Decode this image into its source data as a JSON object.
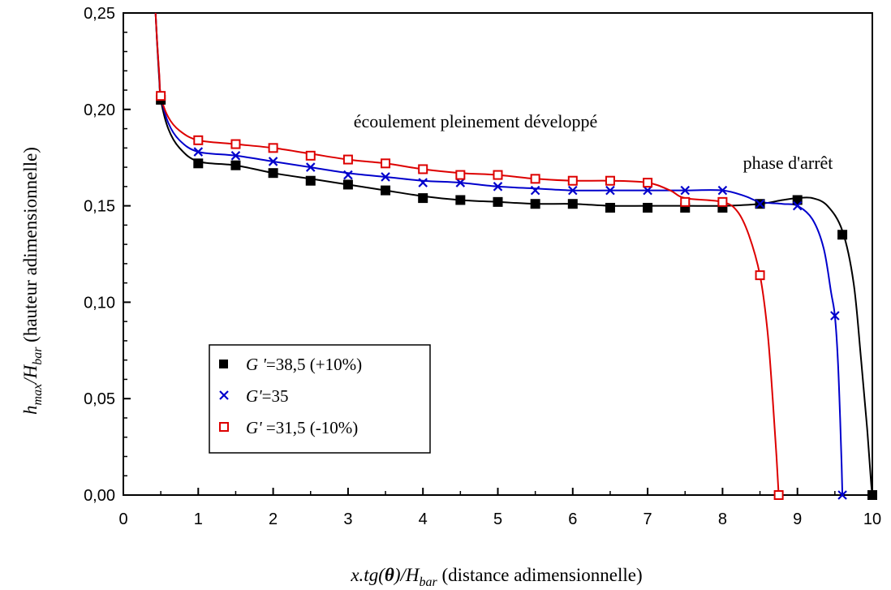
{
  "chart_data": {
    "type": "line",
    "title": "",
    "xlabel": {
      "prefix": "x.tg(",
      "theta": "θ",
      "close": ")/H",
      "sub": "bar",
      "rest": " (distance adimensionnelle)"
    },
    "ylabel": {
      "h": "h",
      "h_sub": "max",
      "slash": "/H",
      "H_sub": "bar",
      "rest": " (hauteur adimensionnelle)"
    },
    "xlim": [
      0,
      10
    ],
    "ylim": [
      0,
      0.25
    ],
    "x_ticks": [
      0,
      1,
      2,
      3,
      4,
      5,
      6,
      7,
      8,
      9,
      10
    ],
    "x_tick_labels": [
      "0",
      "1",
      "2",
      "3",
      "4",
      "5",
      "6",
      "7",
      "8",
      "9",
      "10"
    ],
    "y_ticks": [
      0,
      0.05,
      0.1,
      0.15,
      0.2,
      0.25
    ],
    "y_tick_labels": [
      "0,00",
      "0,05",
      "0,10",
      "0,15",
      "0,20",
      "0,25"
    ],
    "grid": false,
    "legend_placement": "bottom-left",
    "annotations": [
      {
        "text": "écoulement pleinement développé",
        "x": 4.1,
        "y": 0.2
      },
      {
        "text": "phase d'arrêt",
        "x": 9.0,
        "y": 0.172
      }
    ],
    "series": [
      {
        "legend_italic": "G '",
        "legend_rest": "=38,5 (+10%)",
        "color": "#000000",
        "marker": "filled-square",
        "points": [
          [
            0.5,
            0.205
          ],
          [
            1.0,
            0.172
          ],
          [
            1.5,
            0.171
          ],
          [
            2.0,
            0.167
          ],
          [
            2.5,
            0.163
          ],
          [
            3.0,
            0.161
          ],
          [
            3.5,
            0.158
          ],
          [
            4.0,
            0.154
          ],
          [
            4.5,
            0.153
          ],
          [
            5.0,
            0.152
          ],
          [
            5.5,
            0.151
          ],
          [
            6.0,
            0.151
          ],
          [
            6.5,
            0.149
          ],
          [
            7.0,
            0.149
          ],
          [
            7.5,
            0.149
          ],
          [
            8.0,
            0.149
          ],
          [
            8.5,
            0.151
          ],
          [
            9.0,
            0.153
          ],
          [
            9.6,
            0.135
          ],
          [
            10.0,
            0.0
          ]
        ],
        "curve": [
          [
            0.43,
            0.25
          ],
          [
            0.45,
            0.235
          ],
          [
            0.48,
            0.215
          ],
          [
            0.5,
            0.205
          ],
          [
            0.6,
            0.19
          ],
          [
            0.75,
            0.18
          ],
          [
            1.0,
            0.173
          ],
          [
            1.5,
            0.171
          ],
          [
            2.0,
            0.167
          ],
          [
            2.5,
            0.164
          ],
          [
            3.0,
            0.161
          ],
          [
            3.5,
            0.158
          ],
          [
            4.0,
            0.155
          ],
          [
            4.5,
            0.153
          ],
          [
            5.0,
            0.152
          ],
          [
            5.5,
            0.151
          ],
          [
            6.0,
            0.151
          ],
          [
            6.5,
            0.15
          ],
          [
            7.0,
            0.15
          ],
          [
            7.5,
            0.15
          ],
          [
            8.0,
            0.15
          ],
          [
            8.5,
            0.151
          ],
          [
            8.8,
            0.153
          ],
          [
            9.0,
            0.154
          ],
          [
            9.2,
            0.154
          ],
          [
            9.4,
            0.15
          ],
          [
            9.6,
            0.137
          ],
          [
            9.75,
            0.11
          ],
          [
            9.85,
            0.07
          ],
          [
            9.93,
            0.035
          ],
          [
            9.98,
            0.008
          ],
          [
            10.0,
            0.0
          ]
        ]
      },
      {
        "legend_italic": "G'",
        "legend_rest": "=35",
        "color": "#0000cc",
        "marker": "x",
        "points": [
          [
            1.0,
            0.178
          ],
          [
            1.5,
            0.176
          ],
          [
            2.0,
            0.173
          ],
          [
            2.5,
            0.17
          ],
          [
            3.0,
            0.166
          ],
          [
            3.5,
            0.165
          ],
          [
            4.0,
            0.162
          ],
          [
            4.5,
            0.162
          ],
          [
            5.0,
            0.16
          ],
          [
            5.5,
            0.158
          ],
          [
            6.0,
            0.158
          ],
          [
            6.5,
            0.158
          ],
          [
            7.0,
            0.158
          ],
          [
            7.5,
            0.158
          ],
          [
            8.0,
            0.158
          ],
          [
            8.5,
            0.151
          ],
          [
            9.0,
            0.15
          ],
          [
            9.5,
            0.093
          ],
          [
            9.6,
            0.0
          ]
        ],
        "curve": [
          [
            0.43,
            0.25
          ],
          [
            0.45,
            0.236
          ],
          [
            0.48,
            0.217
          ],
          [
            0.5,
            0.207
          ],
          [
            0.6,
            0.193
          ],
          [
            0.75,
            0.184
          ],
          [
            1.0,
            0.178
          ],
          [
            1.5,
            0.176
          ],
          [
            2.0,
            0.173
          ],
          [
            2.5,
            0.17
          ],
          [
            3.0,
            0.167
          ],
          [
            3.5,
            0.165
          ],
          [
            4.0,
            0.163
          ],
          [
            4.5,
            0.162
          ],
          [
            5.0,
            0.16
          ],
          [
            5.5,
            0.159
          ],
          [
            6.0,
            0.158
          ],
          [
            6.5,
            0.158
          ],
          [
            7.0,
            0.158
          ],
          [
            7.5,
            0.158
          ],
          [
            8.0,
            0.158
          ],
          [
            8.3,
            0.155
          ],
          [
            8.5,
            0.152
          ],
          [
            8.8,
            0.151
          ],
          [
            9.0,
            0.15
          ],
          [
            9.2,
            0.143
          ],
          [
            9.35,
            0.128
          ],
          [
            9.45,
            0.105
          ],
          [
            9.5,
            0.093
          ],
          [
            9.54,
            0.07
          ],
          [
            9.57,
            0.04
          ],
          [
            9.59,
            0.015
          ],
          [
            9.6,
            0.0
          ]
        ]
      },
      {
        "legend_italic": "G'",
        "legend_rest": " =31,5 (-10%)",
        "color": "#dd0000",
        "marker": "open-square",
        "points": [
          [
            0.5,
            0.207
          ],
          [
            1.0,
            0.184
          ],
          [
            1.5,
            0.182
          ],
          [
            2.0,
            0.18
          ],
          [
            2.5,
            0.176
          ],
          [
            3.0,
            0.174
          ],
          [
            3.5,
            0.172
          ],
          [
            4.0,
            0.169
          ],
          [
            4.5,
            0.166
          ],
          [
            5.0,
            0.166
          ],
          [
            5.5,
            0.164
          ],
          [
            6.0,
            0.163
          ],
          [
            6.5,
            0.163
          ],
          [
            7.0,
            0.162
          ],
          [
            7.5,
            0.152
          ],
          [
            8.0,
            0.152
          ],
          [
            8.5,
            0.114
          ],
          [
            8.75,
            0.0
          ]
        ],
        "curve": [
          [
            0.43,
            0.25
          ],
          [
            0.45,
            0.236
          ],
          [
            0.48,
            0.218
          ],
          [
            0.5,
            0.207
          ],
          [
            0.6,
            0.196
          ],
          [
            0.75,
            0.189
          ],
          [
            1.0,
            0.184
          ],
          [
            1.5,
            0.182
          ],
          [
            2.0,
            0.18
          ],
          [
            2.5,
            0.177
          ],
          [
            3.0,
            0.174
          ],
          [
            3.5,
            0.172
          ],
          [
            4.0,
            0.169
          ],
          [
            4.5,
            0.167
          ],
          [
            5.0,
            0.166
          ],
          [
            5.5,
            0.164
          ],
          [
            6.0,
            0.163
          ],
          [
            6.5,
            0.163
          ],
          [
            7.0,
            0.162
          ],
          [
            7.3,
            0.158
          ],
          [
            7.5,
            0.154
          ],
          [
            8.0,
            0.152
          ],
          [
            8.2,
            0.147
          ],
          [
            8.35,
            0.135
          ],
          [
            8.5,
            0.114
          ],
          [
            8.6,
            0.085
          ],
          [
            8.67,
            0.05
          ],
          [
            8.72,
            0.02
          ],
          [
            8.75,
            0.0
          ]
        ]
      }
    ]
  }
}
